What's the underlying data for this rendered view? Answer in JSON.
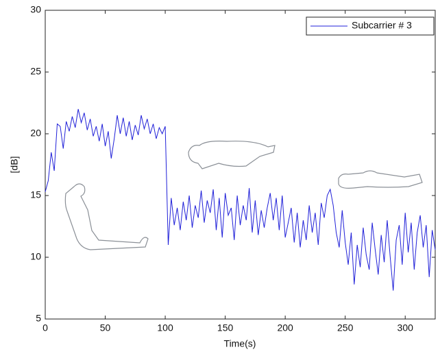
{
  "chart_data": {
    "type": "line",
    "xlabel": "Time(s)",
    "ylabel": "[dB]",
    "x": [
      0,
      2.5,
      5,
      7.5,
      10,
      12.5,
      15,
      17.5,
      20,
      22.5,
      25,
      27.5,
      30,
      32.5,
      35,
      37.5,
      40,
      42.5,
      45,
      47.5,
      50,
      52.5,
      55,
      57.5,
      60,
      62.5,
      65,
      67.5,
      70,
      72.5,
      75,
      77.5,
      80,
      82.5,
      85,
      87.5,
      90,
      92.5,
      95,
      97.5,
      100,
      102.5,
      105,
      107.5,
      110,
      112.5,
      115,
      117.5,
      120,
      122.5,
      125,
      127.5,
      130,
      132.5,
      135,
      137.5,
      140,
      142.5,
      145,
      147.5,
      150,
      152.5,
      155,
      157.5,
      160,
      162.5,
      165,
      167.5,
      170,
      172.5,
      175,
      177.5,
      180,
      182.5,
      185,
      187.5,
      190,
      192.5,
      195,
      197.5,
      200,
      202.5,
      205,
      207.5,
      210,
      212.5,
      215,
      217.5,
      220,
      222.5,
      225,
      227.5,
      230,
      232.5,
      235,
      237.5,
      240,
      242.5,
      245,
      247.5,
      250,
      252.5,
      255,
      257.5,
      260,
      262.5,
      265,
      267.5,
      270,
      272.5,
      275,
      277.5,
      280,
      282.5,
      285,
      287.5,
      290,
      292.5,
      295,
      297.5,
      300,
      302.5,
      305,
      307.5,
      310,
      312.5,
      315,
      317.5,
      320,
      322.5,
      325
    ],
    "series": [
      {
        "name": "Subcarrier # 3",
        "color": "#1f1fd8",
        "values": [
          15.3,
          16.2,
          18.5,
          17.0,
          20.8,
          20.6,
          18.8,
          21.0,
          20.2,
          21.4,
          20.5,
          22.0,
          20.9,
          21.7,
          20.3,
          21.2,
          19.8,
          20.6,
          19.4,
          20.8,
          19.0,
          20.2,
          18.0,
          19.6,
          21.5,
          20.0,
          21.3,
          19.8,
          21.0,
          19.5,
          20.7,
          19.9,
          21.5,
          20.4,
          21.2,
          20.0,
          20.8,
          19.6,
          20.5,
          20.0,
          20.6,
          11.0,
          14.8,
          12.6,
          14.0,
          12.2,
          14.5,
          13.0,
          15.0,
          12.4,
          14.2,
          13.2,
          15.4,
          12.8,
          14.6,
          13.6,
          15.5,
          12.2,
          14.8,
          11.6,
          15.2,
          13.4,
          14.0,
          11.4,
          15.0,
          12.6,
          14.2,
          13.0,
          15.6,
          12.0,
          14.6,
          11.8,
          13.8,
          12.4,
          14.0,
          15.2,
          13.0,
          14.8,
          12.2,
          15.0,
          11.6,
          12.8,
          14.0,
          11.2,
          13.6,
          10.8,
          13.0,
          11.4,
          14.2,
          12.0,
          13.6,
          11.0,
          14.4,
          13.2,
          15.0,
          15.5,
          14.2,
          12.0,
          10.8,
          13.8,
          11.2,
          9.4,
          12.0,
          7.8,
          11.0,
          9.2,
          12.4,
          10.2,
          9.0,
          12.8,
          10.6,
          8.6,
          11.8,
          9.6,
          13.0,
          10.0,
          7.3,
          11.4,
          12.6,
          9.4,
          13.6,
          10.4,
          12.8,
          9.0,
          12.0,
          13.4,
          10.8,
          12.6,
          8.4,
          12.2,
          10.6
        ]
      }
    ],
    "xlim": [
      0,
      325
    ],
    "xticks": [
      0,
      50,
      100,
      150,
      200,
      250,
      300
    ],
    "ylim": [
      5,
      30
    ],
    "yticks": [
      5,
      10,
      15,
      20,
      25,
      30
    ],
    "grid": false,
    "legend": "upper right"
  }
}
